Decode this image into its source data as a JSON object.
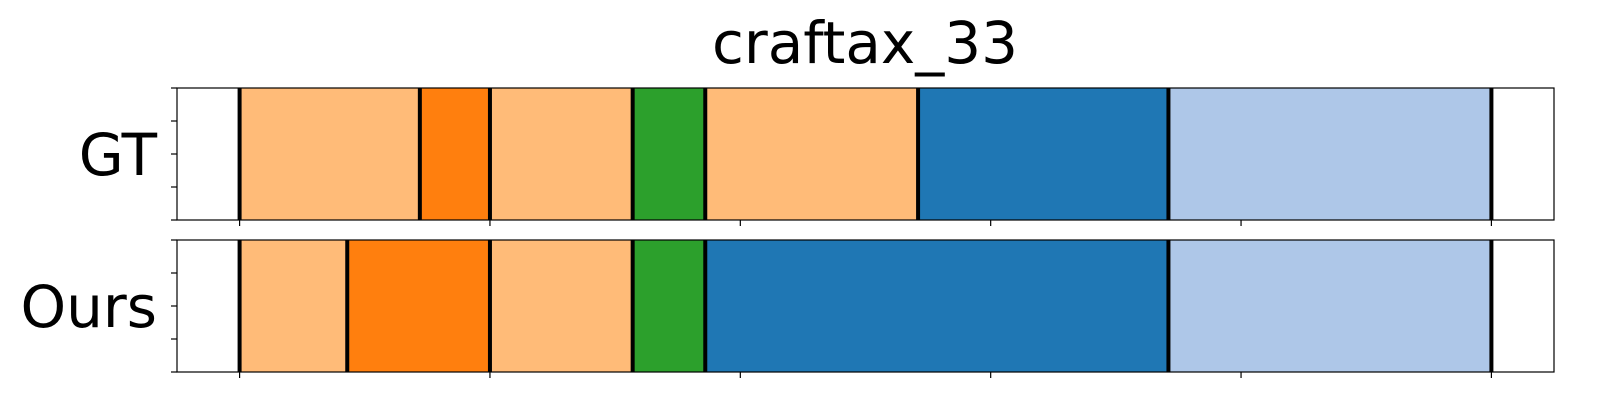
{
  "chart_data": {
    "type": "bar",
    "title": "craftax_33",
    "rows": [
      {
        "label": "GT",
        "segments": [
          {
            "start": 0,
            "end": 25,
            "color": "#ffffff"
          },
          {
            "start": 25,
            "end": 97,
            "color": "#ffbb78"
          },
          {
            "start": 97,
            "end": 125,
            "color": "#ff7f0e"
          },
          {
            "start": 125,
            "end": 182,
            "color": "#ffbb78"
          },
          {
            "start": 182,
            "end": 211,
            "color": "#2ca02c"
          },
          {
            "start": 211,
            "end": 296,
            "color": "#ffbb78"
          },
          {
            "start": 296,
            "end": 396,
            "color": "#1f77b4"
          },
          {
            "start": 396,
            "end": 525,
            "color": "#aec7e8"
          },
          {
            "start": 525,
            "end": 550,
            "color": "#ffffff"
          }
        ],
        "boundaries": [
          25,
          97,
          125,
          182,
          211,
          296,
          396,
          525
        ]
      },
      {
        "label": "Ours",
        "segments": [
          {
            "start": 0,
            "end": 25,
            "color": "#ffffff"
          },
          {
            "start": 25,
            "end": 68,
            "color": "#ffbb78"
          },
          {
            "start": 68,
            "end": 125,
            "color": "#ff7f0e"
          },
          {
            "start": 125,
            "end": 182,
            "color": "#ffbb78"
          },
          {
            "start": 182,
            "end": 211,
            "color": "#2ca02c"
          },
          {
            "start": 211,
            "end": 396,
            "color": "#1f77b4"
          },
          {
            "start": 396,
            "end": 525,
            "color": "#aec7e8"
          },
          {
            "start": 525,
            "end": 550,
            "color": "#ffffff"
          }
        ],
        "boundaries": [
          25,
          68,
          125,
          182,
          211,
          396,
          525
        ]
      }
    ],
    "xlim": [
      0,
      550
    ],
    "xticks": [
      25,
      125,
      225,
      325,
      425,
      525
    ],
    "y_minor_ticks": 5,
    "grid": false
  }
}
